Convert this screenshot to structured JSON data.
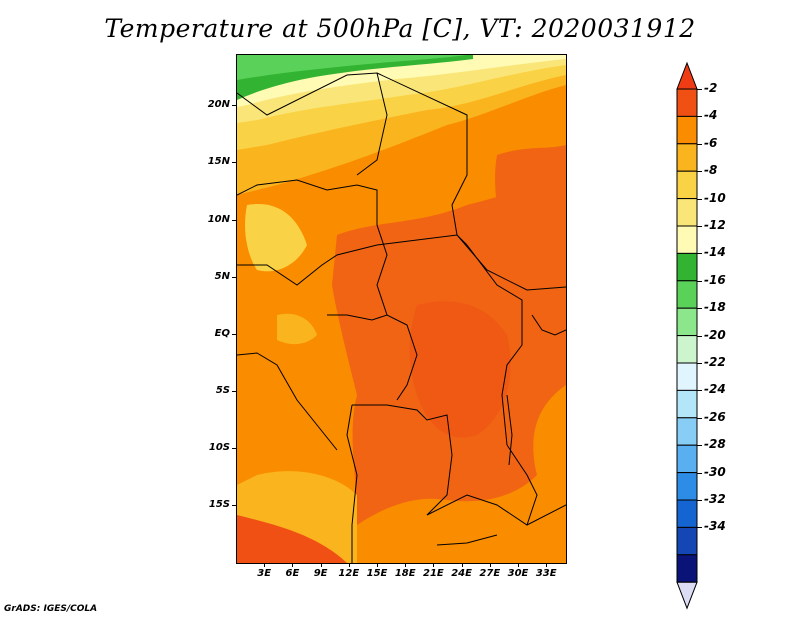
{
  "title": "Temperature at 500hPa [C], VT: 2020031912",
  "credit": "GrADS: IGES/COLA",
  "lat_ticks": [
    {
      "label": "20N",
      "lat": 20
    },
    {
      "label": "15N",
      "lat": 15
    },
    {
      "label": "10N",
      "lat": 10
    },
    {
      "label": "5N",
      "lat": 5
    },
    {
      "label": "EQ",
      "lat": 0
    },
    {
      "label": "5S",
      "lat": -5
    },
    {
      "label": "10S",
      "lat": -10
    },
    {
      "label": "15S",
      "lat": -15
    }
  ],
  "lon_ticks": [
    {
      "label": "3E",
      "lon": 3
    },
    {
      "label": "6E",
      "lon": 6
    },
    {
      "label": "9E",
      "lon": 9
    },
    {
      "label": "12E",
      "lon": 12
    },
    {
      "label": "15E",
      "lon": 15
    },
    {
      "label": "18E",
      "lon": 18
    },
    {
      "label": "21E",
      "lon": 21
    },
    {
      "label": "24E",
      "lon": 24
    },
    {
      "label": "27E",
      "lon": 27
    },
    {
      "label": "30E",
      "lon": 30
    },
    {
      "label": "33E",
      "lon": 33
    }
  ],
  "map_extent": {
    "lon_min": 0,
    "lon_max": 35,
    "lat_min": -20,
    "lat_max": 24.5
  },
  "colorbar": {
    "levels": [
      "-2",
      "-4",
      "-6",
      "-8",
      "-10",
      "-12",
      "-14",
      "-16",
      "-18",
      "-20",
      "-22",
      "-24",
      "-26",
      "-28",
      "-30",
      "-32",
      "-34"
    ],
    "colors": [
      "#f05014",
      "#fa8c00",
      "#fab41e",
      "#fad246",
      "#fae678",
      "#fffab4",
      "#32b432",
      "#5ad25a",
      "#8ce68c",
      "#cdf5cd",
      "#e1f5ff",
      "#b4e6fa",
      "#87cdf5",
      "#5aaff0",
      "#2d8ce6",
      "#1464d2",
      "#1446b4",
      "#0a1478"
    ],
    "top_arrow_color": "#f03c14",
    "bottom_arrow_color": "#dcdcf5"
  },
  "field_colors": {
    "warm": "#f06414",
    "orange": "#fa8c00",
    "amber": "#fab41e",
    "yellow": "#fad246",
    "pale": "#fae678",
    "cream": "#fffab4",
    "green": "#32b432",
    "red": "#f05014"
  }
}
